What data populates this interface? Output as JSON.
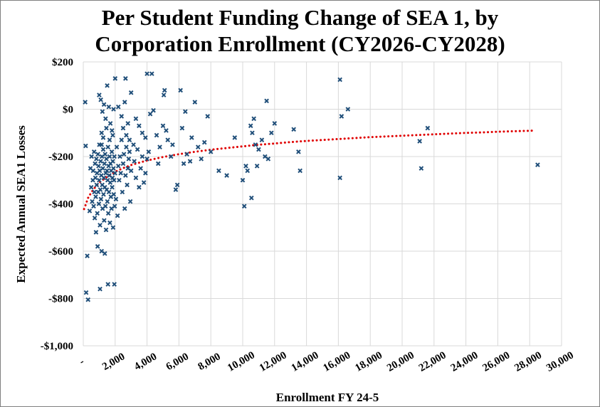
{
  "chart_data": {
    "type": "scatter",
    "title_line1": "Per Student Funding Change of SEA 1, by",
    "title_line2": "Corporation Enrollment (CY2026-CY2028)",
    "xlabel": "Enrollment  FY 24-5",
    "ylabel": "Expected Annual SEA1 Losses",
    "xlim": [
      0,
      30000
    ],
    "ylim": [
      -1000,
      200
    ],
    "x_ticks": [
      0,
      2000,
      4000,
      6000,
      8000,
      10000,
      12000,
      14000,
      16000,
      18000,
      20000,
      22000,
      24000,
      26000,
      28000,
      30000
    ],
    "x_tick_labels": [
      "-",
      "2,000",
      "4,000",
      "6,000",
      "8,000",
      "10,000",
      "12,000",
      "14,000",
      "16,000",
      "18,000",
      "20,000",
      "22,000",
      "24,000",
      "26,000",
      "28,000",
      "30,000"
    ],
    "y_ticks": [
      200,
      0,
      -200,
      -400,
      -600,
      -800,
      -1000
    ],
    "y_tick_labels": [
      "$200",
      "$0",
      "-$200",
      "-$400",
      "-$600",
      "-$800",
      "-$1,000"
    ],
    "grid": true,
    "colors": {
      "points": "#1f4e79",
      "trend": "#e00000",
      "grid": "#d9d9d9"
    },
    "trendline": {
      "type": "logarithmic",
      "x": [
        50,
        150,
        300,
        500,
        800,
        1000,
        1500,
        2000,
        2500,
        3000,
        3500,
        4000,
        5000,
        6000,
        7000,
        8000,
        9000,
        10000,
        11000,
        12000,
        13000,
        14000,
        15000,
        16000,
        17000,
        18000,
        19000,
        20000,
        21000,
        22000,
        23000,
        24000,
        25000,
        26000,
        27000,
        28000,
        28300
      ],
      "y": [
        -422,
        -404,
        -375,
        -352,
        -325,
        -310,
        -285,
        -264,
        -249,
        -236,
        -226,
        -217,
        -202,
        -190,
        -180,
        -171,
        -164,
        -157,
        -150,
        -145,
        -139,
        -134,
        -130,
        -126,
        -122,
        -118,
        -115,
        -112,
        -109,
        -106,
        -103,
        -100,
        -98,
        -95,
        -93,
        -91,
        -90
      ]
    },
    "points": [
      [
        120,
        30
      ],
      [
        150,
        -155
      ],
      [
        250,
        -620
      ],
      [
        180,
        -775
      ],
      [
        300,
        -805
      ],
      [
        400,
        -430
      ],
      [
        450,
        -250
      ],
      [
        500,
        -330
      ],
      [
        520,
        -200
      ],
      [
        560,
        -390
      ],
      [
        600,
        -300
      ],
      [
        620,
        -260
      ],
      [
        650,
        -410
      ],
      [
        680,
        -180
      ],
      [
        700,
        -350
      ],
      [
        720,
        -460
      ],
      [
        740,
        -230
      ],
      [
        760,
        -290
      ],
      [
        780,
        -370
      ],
      [
        800,
        -520
      ],
      [
        820,
        -210
      ],
      [
        840,
        -320
      ],
      [
        860,
        -270
      ],
      [
        880,
        -440
      ],
      [
        900,
        -580
      ],
      [
        920,
        -190
      ],
      [
        940,
        -350
      ],
      [
        960,
        -240
      ],
      [
        980,
        -400
      ],
      [
        1000,
        -300
      ],
      [
        1010,
        -150
      ],
      [
        1030,
        -260
      ],
      [
        1050,
        -490
      ],
      [
        1070,
        -340
      ],
      [
        1090,
        -220
      ],
      [
        1110,
        -380
      ],
      [
        1130,
        -280
      ],
      [
        1150,
        -600
      ],
      [
        1170,
        -200
      ],
      [
        1190,
        -320
      ],
      [
        1210,
        -420
      ],
      [
        1230,
        -250
      ],
      [
        1250,
        -170
      ],
      [
        1270,
        -360
      ],
      [
        1290,
        -290
      ],
      [
        1310,
        -470
      ],
      [
        1330,
        -230
      ],
      [
        1350,
        -330
      ],
      [
        1370,
        -190
      ],
      [
        1390,
        -410
      ],
      [
        1410,
        -270
      ],
      [
        1430,
        -510
      ],
      [
        1450,
        -210
      ],
      [
        1470,
        -340
      ],
      [
        1490,
        -260
      ],
      [
        1510,
        -390
      ],
      [
        1530,
        -300
      ],
      [
        1550,
        -160
      ],
      [
        1570,
        -440
      ],
      [
        1590,
        -240
      ],
      [
        1610,
        -350
      ],
      [
        1630,
        -280
      ],
      [
        1650,
        -200
      ],
      [
        1670,
        -480
      ],
      [
        1690,
        -310
      ],
      [
        1710,
        -230
      ],
      [
        1730,
        -370
      ],
      [
        1750,
        -260
      ],
      [
        1770,
        -420
      ],
      [
        1790,
        -180
      ],
      [
        1810,
        -330
      ],
      [
        1830,
        -290
      ],
      [
        1850,
        -220
      ],
      [
        1870,
        -500
      ],
      [
        1890,
        -250
      ],
      [
        1910,
        -360
      ],
      [
        1930,
        -300
      ],
      [
        1950,
        -200
      ],
      [
        1970,
        -410
      ],
      [
        1990,
        -270
      ],
      [
        1000,
        60
      ],
      [
        1100,
        40
      ],
      [
        1200,
        -10
      ],
      [
        1300,
        20
      ],
      [
        1400,
        -40
      ],
      [
        1500,
        100
      ],
      [
        1600,
        10
      ],
      [
        1700,
        -60
      ],
      [
        1800,
        -90
      ],
      [
        1900,
        0
      ],
      [
        2000,
        130
      ],
      [
        1050,
        -760
      ],
      [
        1350,
        -610
      ],
      [
        1550,
        -740
      ],
      [
        1950,
        -740
      ],
      [
        1150,
        -100
      ],
      [
        1250,
        -120
      ],
      [
        1450,
        -80
      ],
      [
        1650,
        -130
      ],
      [
        1850,
        -110
      ],
      [
        2050,
        -380
      ],
      [
        2100,
        -160
      ],
      [
        2150,
        -450
      ],
      [
        2200,
        -240
      ],
      [
        2250,
        -300
      ],
      [
        2300,
        -200
      ],
      [
        2350,
        -270
      ],
      [
        2400,
        -130
      ],
      [
        2450,
        -350
      ],
      [
        2500,
        -230
      ],
      [
        2550,
        -190
      ],
      [
        2600,
        -420
      ],
      [
        2650,
        -280
      ],
      [
        2700,
        -160
      ],
      [
        2750,
        -320
      ],
      [
        2800,
        -250
      ],
      [
        2850,
        -210
      ],
      [
        2900,
        -180
      ],
      [
        2950,
        -390
      ],
      [
        3000,
        -260
      ],
      [
        2200,
        10
      ],
      [
        2400,
        -30
      ],
      [
        2600,
        30
      ],
      [
        2800,
        -60
      ],
      [
        3000,
        70
      ],
      [
        2500,
        -80
      ],
      [
        2700,
        -110
      ],
      [
        2900,
        -130
      ],
      [
        2650,
        130
      ],
      [
        3150,
        -150
      ],
      [
        3200,
        -220
      ],
      [
        3300,
        -290
      ],
      [
        3400,
        -170
      ],
      [
        3500,
        -330
      ],
      [
        3600,
        -250
      ],
      [
        3700,
        -200
      ],
      [
        3800,
        -310
      ],
      [
        3900,
        -270
      ],
      [
        4000,
        -210
      ],
      [
        4100,
        -180
      ],
      [
        3300,
        -40
      ],
      [
        3500,
        -70
      ],
      [
        3700,
        -100
      ],
      [
        3900,
        -120
      ],
      [
        4200,
        -20
      ],
      [
        4000,
        150
      ],
      [
        4300,
        150
      ],
      [
        4400,
        -5
      ],
      [
        4600,
        -110
      ],
      [
        4700,
        -230
      ],
      [
        4800,
        -160
      ],
      [
        5000,
        -70
      ],
      [
        5100,
        80
      ],
      [
        5050,
        60
      ],
      [
        5200,
        -90
      ],
      [
        5300,
        -130
      ],
      [
        5500,
        -200
      ],
      [
        5600,
        -150
      ],
      [
        5800,
        -340
      ],
      [
        5900,
        -320
      ],
      [
        6100,
        80
      ],
      [
        6200,
        -80
      ],
      [
        6300,
        -230
      ],
      [
        6400,
        -10
      ],
      [
        6500,
        -190
      ],
      [
        6700,
        -220
      ],
      [
        6800,
        -120
      ],
      [
        7000,
        30
      ],
      [
        7200,
        -160
      ],
      [
        7400,
        -210
      ],
      [
        7600,
        -140
      ],
      [
        7800,
        -30
      ],
      [
        8000,
        -180
      ],
      [
        8500,
        -260
      ],
      [
        9000,
        -280
      ],
      [
        9500,
        -120
      ],
      [
        10000,
        -300
      ],
      [
        10100,
        -410
      ],
      [
        10200,
        -240
      ],
      [
        10300,
        -260
      ],
      [
        10500,
        -70
      ],
      [
        10600,
        -100
      ],
      [
        10700,
        -40
      ],
      [
        10800,
        -150
      ],
      [
        10900,
        -240
      ],
      [
        10550,
        -375
      ],
      [
        11000,
        -170
      ],
      [
        11200,
        -130
      ],
      [
        11400,
        -200
      ],
      [
        11500,
        35
      ],
      [
        11600,
        -210
      ],
      [
        11800,
        -100
      ],
      [
        12000,
        -60
      ],
      [
        13200,
        -85
      ],
      [
        13500,
        -180
      ],
      [
        13600,
        -260
      ],
      [
        16100,
        125
      ],
      [
        16200,
        -30
      ],
      [
        16600,
        0
      ],
      [
        16100,
        -290
      ],
      [
        21100,
        -135
      ],
      [
        21200,
        -250
      ],
      [
        21600,
        -80
      ],
      [
        28500,
        -235
      ],
      [
        1150,
        -150
      ]
    ]
  }
}
